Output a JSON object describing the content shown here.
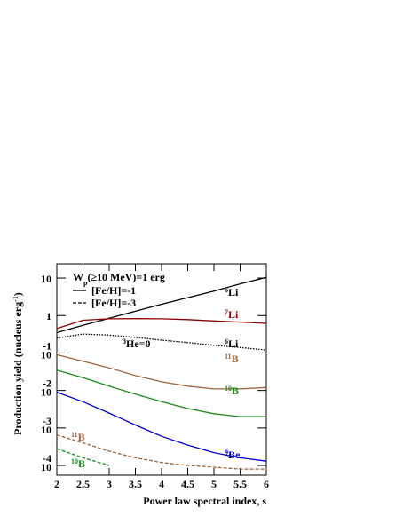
{
  "chart_data": {
    "type": "line",
    "log_y": true,
    "x_label": "Power law spectral index, s",
    "y_label": {
      "text": "Production yield (nucleus erg",
      "sup": "-1",
      "end": ")"
    },
    "legend": {
      "title": {
        "text": "W",
        "sub": "p",
        "rest": "(≥10 MeV)=1 erg"
      },
      "entries": [
        {
          "text": "[Fe/H]=-1",
          "dash": "solid"
        },
        {
          "text": "[Fe/H]=-3",
          "dash": "dashed"
        }
      ]
    },
    "annotations": [
      {
        "sup": "3",
        "text": "He=0"
      }
    ],
    "x": [
      2,
      2.5,
      3,
      3.5,
      4,
      4.5,
      5,
      5.5,
      6
    ],
    "xlim": [
      2,
      6
    ],
    "xticks": [
      2,
      2.5,
      3,
      3.5,
      4,
      4.5,
      5,
      5.5,
      6
    ],
    "ylim": [
      5.5e-05,
      24
    ],
    "yticks": [
      {
        "value": 0.0001,
        "label": "10",
        "exponent": "-4"
      },
      {
        "value": 0.001,
        "label": "10",
        "exponent": "-3"
      },
      {
        "value": 0.01,
        "label": "10",
        "exponent": "-2"
      },
      {
        "value": 0.1,
        "label": "10",
        "exponent": "-1"
      },
      1,
      10
    ],
    "series": [
      {
        "label": {
          "sup": "6",
          "text": "Li"
        },
        "color": "#000000",
        "dash": "solid",
        "values": [
          0.35,
          0.55,
          0.85,
          1.3,
          2.0,
          3.0,
          4.5,
          7,
          10.5
        ]
      },
      {
        "label": {
          "sup": "7",
          "text": "Li"
        },
        "color": "#8b0000",
        "dash": "solid",
        "values": [
          0.45,
          0.75,
          0.82,
          0.83,
          0.82,
          0.78,
          0.72,
          0.67,
          0.62
        ]
      },
      {
        "label": {
          "sup": "6",
          "text": "Li"
        },
        "color": "#000000",
        "dash": "dotted",
        "values": [
          0.25,
          0.32,
          0.3,
          0.26,
          0.22,
          0.19,
          0.16,
          0.14,
          0.12
        ]
      },
      {
        "label": {
          "sup": "11",
          "text": "B"
        },
        "color": "#a0643c",
        "dash": "solid",
        "values": [
          0.09,
          0.06,
          0.04,
          0.025,
          0.017,
          0.013,
          0.011,
          0.011,
          0.012
        ]
      },
      {
        "label": {
          "sup": "10",
          "text": "B"
        },
        "color": "#1a8a1a",
        "dash": "solid",
        "values": [
          0.035,
          0.022,
          0.013,
          0.008,
          0.005,
          0.0033,
          0.0024,
          0.002,
          0.002
        ]
      },
      {
        "label": {
          "sup": "9",
          "text": "Be"
        },
        "color": "#0000cc",
        "dash": "solid",
        "values": [
          0.009,
          0.005,
          0.0025,
          0.0012,
          0.0006,
          0.00035,
          0.00022,
          0.00016,
          0.00013
        ]
      },
      {
        "label": {
          "sup": "11",
          "text": "B"
        },
        "color": "#a0643c",
        "dash": "dashed",
        "values": [
          0.00065,
          0.0004,
          0.00024,
          0.00016,
          0.00012,
          0.0001,
          9e-05,
          8e-05,
          8e-05
        ]
      },
      {
        "label": {
          "sup": "10",
          "text": "B"
        },
        "color": "#1a8a1a",
        "dash": "dashed",
        "values": [
          0.00028,
          0.00016,
          0.0001,
          null,
          null,
          null,
          null,
          null,
          null
        ]
      }
    ]
  }
}
